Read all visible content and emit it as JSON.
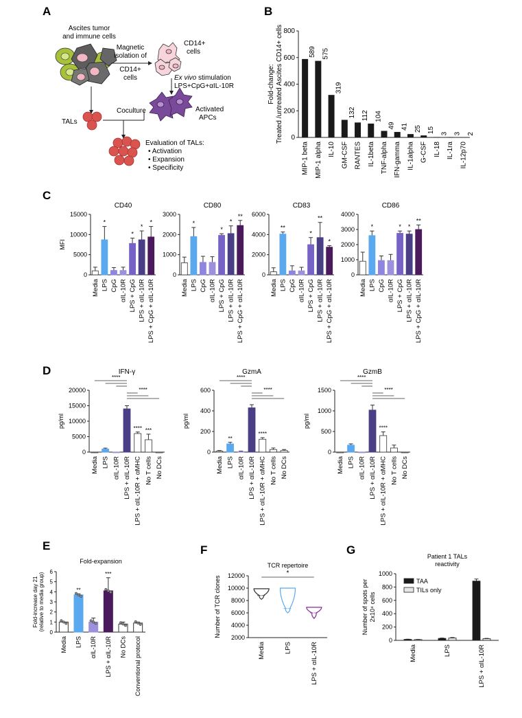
{
  "panels": {
    "A": "A",
    "B": "B",
    "C": "C",
    "D": "D",
    "E": "E",
    "F": "F",
    "G": "G"
  },
  "schematic": {
    "ascites_l1": "Ascites tumor",
    "ascites_l2": "and immune cells",
    "magnetic_l1": "Magnetic",
    "magnetic_l2": "isolation of",
    "magnetic_l3": "CD14+",
    "magnetic_l4": "cells",
    "cd14_l1": "CD14+",
    "cd14_l2": "cells",
    "exvivo_italic": "Ex vivo",
    "exvivo_rest": " stimulation",
    "stim": "LPS+CpG+αIL-10R",
    "tals": "TALs",
    "coculture": "Coculture",
    "activated_l1": "Activated",
    "activated_l2": "APCs",
    "eval_title": "Evaluation of TALs:",
    "eval_items": [
      "• Activation",
      "• Expansion",
      "• Specificity"
    ]
  },
  "colors": {
    "media": "#ffffff",
    "lps": "#5aa9ef",
    "cpg": "#8f85e0",
    "il10r": "#9d90dc",
    "lps_cpg": "#7763c6",
    "lps_il10r": "#4a3f86",
    "triple": "#4a1a5c",
    "gray": "#3a3a3a",
    "bar_black": "#1a1a1a",
    "green": "#a7c23a",
    "pink": "#f2b7c4",
    "tal_red": "#d9534f",
    "apc": "#7a4a9a"
  },
  "chart_data": [
    {
      "id": "B",
      "type": "bar",
      "ylabel": "Fold-change: Treated /untreated Ascites CD14+ cells",
      "ylabel_l1": "Fold-change:",
      "ylabel_l2": "Treated /untreated Ascites CD14+ cells",
      "ylim": [
        0,
        800
      ],
      "yticks": [
        "0",
        "200",
        "400",
        "600",
        "800"
      ],
      "categories": [
        "MIP-1 beta",
        "MIP-1 alpha",
        "IL-10",
        "GM-CSF",
        "RANTES",
        "IL-1beta",
        "TNF-alpha",
        "IFN-gamma",
        "IL-1alpha",
        "G-CSF",
        "IL-18",
        "IL-1ra",
        "IL-12p70"
      ],
      "values": [
        589,
        575,
        319,
        132,
        112,
        104,
        49,
        41,
        25,
        15,
        3,
        3,
        2
      ],
      "value_labels": [
        "589",
        "575",
        "319",
        "132",
        "112",
        "104",
        "49",
        "41",
        "25",
        "15",
        "3",
        "3",
        "2"
      ]
    },
    {
      "id": "C1",
      "type": "bar",
      "title": "CD40",
      "ylabel": "MFI",
      "ylim": [
        0,
        15000
      ],
      "yticks": [
        "0",
        "5000",
        "10000",
        "15000"
      ],
      "categories": [
        "Media",
        "LPS",
        "CpG",
        "αIL-10R",
        "LPS + CpG",
        "LPS + αIL-10R",
        "LPS + CpG + αIL-10R"
      ],
      "values": [
        1000,
        8700,
        1100,
        1100,
        7800,
        8700,
        9400
      ],
      "errors": [
        900,
        3300,
        700,
        800,
        1300,
        2200,
        2600
      ],
      "stars": [
        "",
        "*",
        "",
        "",
        "*",
        "*",
        "*"
      ],
      "colors": [
        "#ffffff",
        "#5aa9ef",
        "#8f85e0",
        "#9d90dc",
        "#7763c6",
        "#4a3f86",
        "#4a1a5c"
      ]
    },
    {
      "id": "C2",
      "type": "bar",
      "title": "CD80",
      "ylabel": "",
      "ylim": [
        0,
        3000
      ],
      "yticks": [
        "0",
        "1000",
        "2000",
        "3000"
      ],
      "categories": [
        "Media",
        "LPS",
        "CpG",
        "αIL-10R",
        "LPS + CpG",
        "LPS + αIL-10R",
        "LPS + CpG + αIL-10R"
      ],
      "values": [
        600,
        1900,
        620,
        620,
        1960,
        2050,
        2450
      ],
      "errors": [
        280,
        450,
        300,
        280,
        80,
        380,
        250
      ],
      "stars": [
        "",
        "*",
        "",
        "",
        "*",
        "*",
        "**"
      ],
      "colors": [
        "#ffffff",
        "#5aa9ef",
        "#8f85e0",
        "#9d90dc",
        "#7763c6",
        "#4a3f86",
        "#4a1a5c"
      ]
    },
    {
      "id": "C3",
      "type": "bar",
      "title": "CD83",
      "ylabel": "",
      "ylim": [
        0,
        6000
      ],
      "yticks": [
        "0",
        "2000",
        "4000",
        "6000"
      ],
      "categories": [
        "Media",
        "LPS",
        "CpG",
        "αIL-10R",
        "LPS + CpG",
        "LPS + αIL-10R",
        "LPS + CpG + αIL-10R"
      ],
      "values": [
        300,
        4050,
        400,
        400,
        3000,
        3700,
        2750
      ],
      "errors": [
        400,
        200,
        500,
        350,
        700,
        1500,
        150
      ],
      "stars": [
        "",
        "**",
        "",
        "",
        "*",
        "**",
        "*"
      ],
      "colors": [
        "#ffffff",
        "#5aa9ef",
        "#8f85e0",
        "#9d90dc",
        "#7763c6",
        "#4a3f86",
        "#4a1a5c"
      ]
    },
    {
      "id": "C4",
      "type": "bar",
      "title": "CD86",
      "ylabel": "",
      "ylim": [
        0,
        4000
      ],
      "yticks": [
        "0",
        "1000",
        "2000",
        "3000",
        "4000"
      ],
      "categories": [
        "Media",
        "LPS",
        "CpG",
        "αIL-10R",
        "LPS + CpG",
        "LPS + αIL-10R",
        "LPS + CpG + αIL-10R"
      ],
      "values": [
        900,
        2600,
        950,
        950,
        2750,
        2700,
        3000
      ],
      "errors": [
        600,
        300,
        300,
        400,
        150,
        200,
        300
      ],
      "stars": [
        "",
        "*",
        "",
        "",
        "*",
        "*",
        "**"
      ],
      "colors": [
        "#ffffff",
        "#5aa9ef",
        "#8f85e0",
        "#9d90dc",
        "#7763c6",
        "#4a3f86",
        "#4a1a5c"
      ]
    },
    {
      "id": "D1",
      "type": "bar",
      "title": "IFN-γ",
      "ylabel": "pg/ml",
      "ylim": [
        0,
        20000
      ],
      "yticks": [
        "0",
        "5000",
        "10000",
        "15000",
        "20000"
      ],
      "categories": [
        "Media",
        "LPS",
        "αIL-10R",
        "LPS + αIL-10R",
        "LPS + αIL-10R + αMHC",
        "No T cells",
        "No DCs"
      ],
      "values": [
        0,
        1000,
        0,
        14000,
        6000,
        4000,
        0
      ],
      "errors": [
        0,
        300,
        0,
        1000,
        500,
        1800,
        0
      ],
      "stars": [
        "",
        "",
        "",
        "",
        "****",
        "***",
        ""
      ],
      "bracket_label": "****",
      "colors": [
        "#ffffff",
        "#5aa9ef",
        "#9d90dc",
        "#4a3f86",
        "#ffffff",
        "#ffffff",
        "#ffffff"
      ]
    },
    {
      "id": "D2",
      "type": "bar",
      "title": "GzmA",
      "ylabel": "pg/ml",
      "ylim": [
        0,
        600
      ],
      "yticks": [
        "0",
        "200",
        "400",
        "600"
      ],
      "categories": [
        "Media",
        "LPS",
        "αIL-10R",
        "LPS + αIL-10R",
        "LPS + αIL-10R + αMHC",
        "No T cells",
        "No DCs"
      ],
      "values": [
        10,
        80,
        5,
        430,
        125,
        25,
        15
      ],
      "errors": [
        5,
        15,
        5,
        30,
        15,
        15,
        10
      ],
      "stars": [
        "",
        "**",
        "",
        "",
        "****",
        "",
        ""
      ],
      "bracket_label": "****",
      "colors": [
        "#ffffff",
        "#5aa9ef",
        "#9d90dc",
        "#4a3f86",
        "#ffffff",
        "#ffffff",
        "#ffffff"
      ]
    },
    {
      "id": "D3",
      "type": "bar",
      "title": "GzmB",
      "ylabel": "pg/ml",
      "ylim": [
        0,
        1500
      ],
      "yticks": [
        "0",
        "500",
        "1000",
        "1500"
      ],
      "categories": [
        "Media",
        "LPS",
        "αIL-10R",
        "LPS + αIL-10R",
        "LPS + αIL-10R + αMHC",
        "No T cells",
        "No DCs"
      ],
      "values": [
        0,
        170,
        0,
        1020,
        400,
        100,
        0
      ],
      "errors": [
        0,
        30,
        0,
        120,
        90,
        70,
        0
      ],
      "stars": [
        "",
        "",
        "",
        "",
        "****",
        "",
        ""
      ],
      "bracket_label": "****",
      "colors": [
        "#ffffff",
        "#5aa9ef",
        "#9d90dc",
        "#4a3f86",
        "#ffffff",
        "#ffffff",
        "#ffffff"
      ]
    },
    {
      "id": "E",
      "type": "bar",
      "title": "Fold-expansion",
      "ylabel": "Fold-increase day 21 (relative to media group)",
      "ylabel_l1": "Fold-increase day 21",
      "ylabel_l2": "(relative to media group)",
      "ylim": [
        0,
        6
      ],
      "yticks": [
        "0",
        "1",
        "2",
        "3",
        "4",
        "5",
        "6"
      ],
      "categories": [
        "Media",
        "LPS",
        "αIL-10R",
        "LPS + αIL-10R",
        "No DCs",
        "Conventional protocol"
      ],
      "values": [
        1,
        3.7,
        1.0,
        4.1,
        0.8,
        0.9
      ],
      "errors": [
        0,
        0.1,
        0.4,
        1.3,
        0.2,
        0.1
      ],
      "stars": [
        "",
        "**",
        "",
        "***",
        "",
        ""
      ],
      "colors": [
        "#ffffff",
        "#5aa9ef",
        "#9d90dc",
        "#4a1a5c",
        "#ffffff",
        "#ffffff"
      ]
    },
    {
      "id": "F",
      "type": "violin",
      "title": "TCR repertoire",
      "ylabel": "Number of TCR clones",
      "ylim": [
        2000,
        12000
      ],
      "yticks": [
        "2000",
        "4000",
        "6000",
        "8000",
        "10000",
        "12000"
      ],
      "categories": [
        "Media",
        "LPS",
        "LPS + αIL-10R"
      ],
      "ranges": [
        [
          8200,
          9900
        ],
        [
          6000,
          10000
        ],
        [
          5100,
          6900
        ]
      ],
      "medians": [
        8800,
        6700,
        6000
      ],
      "sig_label": "*",
      "colors": [
        "#ffffff",
        "#5aa9ef",
        "#8a2a9a"
      ]
    },
    {
      "id": "G",
      "type": "bar",
      "title_l1": "Patient 1 TALs",
      "title_l2": "reactivity",
      "ylabel_l1": "Number of spots per",
      "ylabel_l2": "2x10⁴ cells",
      "ylim": [
        0,
        1000
      ],
      "yticks": [
        "0",
        "200",
        "400",
        "600",
        "800",
        "1000"
      ],
      "categories": [
        "Media",
        "LPS",
        "LPS + αIL-10R"
      ],
      "series": [
        {
          "name": "TAA",
          "values": [
            15,
            30,
            890
          ],
          "errors": [
            3,
            5,
            30
          ]
        },
        {
          "name": "TILs only",
          "values": [
            12,
            35,
            25
          ],
          "errors": [
            3,
            8,
            5
          ]
        }
      ]
    }
  ]
}
